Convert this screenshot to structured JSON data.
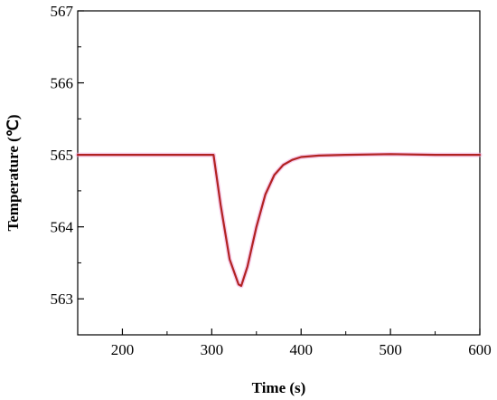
{
  "chart_data": {
    "type": "line",
    "title": "",
    "xlabel": "Time (s)",
    "ylabel": "Temperature (℃)",
    "xlim": [
      150,
      600
    ],
    "ylim": [
      562.5,
      567
    ],
    "x_ticks": [
      200,
      300,
      400,
      500,
      600
    ],
    "y_ticks": [
      563,
      564,
      565,
      566,
      567
    ],
    "grid": false,
    "legend": "none",
    "series": [
      {
        "color": "#b22222",
        "x": [
          150,
          200,
          250,
          300,
          302,
          310,
          320,
          330,
          333,
          340,
          350,
          360,
          370,
          380,
          390,
          400,
          420,
          450,
          500,
          550,
          600
        ],
        "y": [
          565.0,
          565.0,
          565.0,
          565.0,
          565.0,
          564.3,
          563.55,
          563.2,
          563.18,
          563.45,
          564.0,
          564.45,
          564.72,
          564.86,
          564.93,
          564.97,
          564.99,
          565.0,
          565.01,
          565.0,
          565.0
        ]
      }
    ]
  }
}
